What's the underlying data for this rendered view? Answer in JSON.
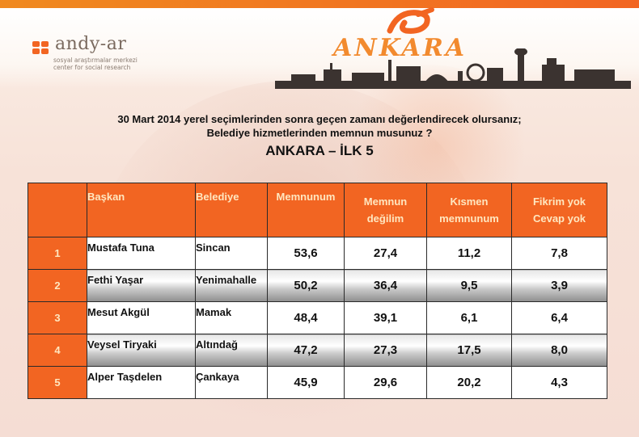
{
  "logo": {
    "name": "andy-ar",
    "tagline_line1": "sosyal araştırmalar merkezi",
    "tagline_line2": "center for social research"
  },
  "city_title": "ANKARA",
  "question_line1": "30 Mart 2014 yerel seçimlerinden sonra geçen zamanı değerlendirecek olursanız;",
  "question_line2": "Belediye hizmetlerinden memnun musunuz ?",
  "subtitle": "ANKARA – İLK 5",
  "table": {
    "headers": {
      "rank": "",
      "baskan": "Başkan",
      "belediye": "Belediye",
      "memnunum": "Memnunum",
      "memnun_degilim_1": "Memnun",
      "memnun_degilim_2": "değilim",
      "kismen_1": "Kısmen",
      "kismen_2": "memnunum",
      "fikrim_1": "Fikrim yok",
      "fikrim_2": "Cevap yok"
    },
    "rows": [
      {
        "rank": "1",
        "baskan": "Mustafa Tuna",
        "belediye": "Sincan",
        "memnunum": "53,6",
        "memnun_degilim": "27,4",
        "kismen": "11,2",
        "fikrim_yok": "7,8"
      },
      {
        "rank": "2",
        "baskan": "Fethi Yaşar",
        "belediye": "Yenimahalle",
        "memnunum": "50,2",
        "memnun_degilim": "36,4",
        "kismen": "9,5",
        "fikrim_yok": "3,9"
      },
      {
        "rank": "3",
        "baskan": "Mesut Akgül",
        "belediye": "Mamak",
        "memnunum": "48,4",
        "memnun_degilim": "39,1",
        "kismen": "6,1",
        "fikrim_yok": "6,4"
      },
      {
        "rank": "4",
        "baskan": "Veysel Tiryaki",
        "belediye": "Altındağ",
        "memnunum": "47,2",
        "memnun_degilim": "27,3",
        "kismen": "17,5",
        "fikrim_yok": "8,0"
      },
      {
        "rank": "5",
        "baskan": "Alper Taşdelen",
        "belediye": "Çankaya",
        "memnunum": "45,9",
        "memnun_degilim": "29,6",
        "kismen": "20,2",
        "fikrim_yok": "4,3"
      }
    ]
  },
  "colors": {
    "accent": "#f26522",
    "header_text": "#ffe7c0",
    "title_orange": "#f28a2e"
  }
}
